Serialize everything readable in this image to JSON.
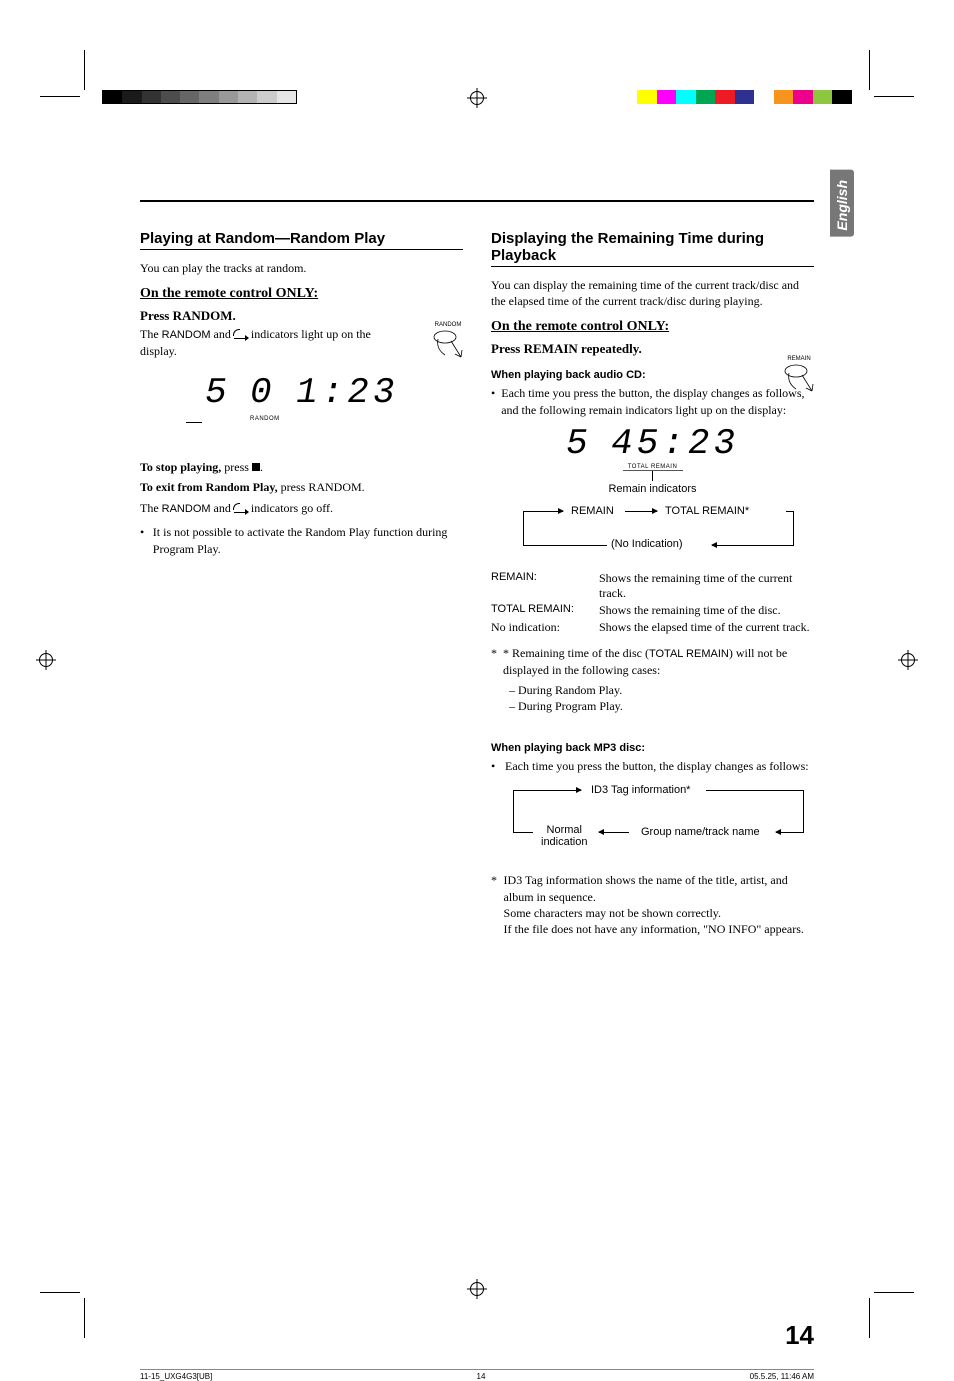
{
  "registration_colors": {
    "gray_ramp": [
      "#000000",
      "#1a1a1a",
      "#333333",
      "#4d4d4d",
      "#666666",
      "#7f7f7f",
      "#999999",
      "#b3b3b3",
      "#cccccc",
      "#e5e5e5"
    ],
    "cmyk_bar": [
      "#ffff00",
      "#ff00ff",
      "#00ffff",
      "#00a651",
      "#ed1c24",
      "#2e3192",
      "#ffffff",
      "#f7941d",
      "#ec008c",
      "#8dc63f",
      "#000000"
    ]
  },
  "lang_tab": "English",
  "left": {
    "h2": "Playing at Random—Random Play",
    "intro": "You can play the tracks at random.",
    "remote_only": "On the remote control ONLY:",
    "press_random": "Press RANDOM.",
    "random_desc_pre": "The ",
    "random_word": "RANDOM",
    "random_desc_mid": " and ",
    "random_desc_post": " indicators light up on the display.",
    "btn_label": "RANDOM",
    "lcd": {
      "track": "5",
      "idx": "0",
      "time": "1:23",
      "label": "RANDOM"
    },
    "stop_bold": "To stop playing,",
    "stop_rest": " press ",
    "stop_rest2": ".",
    "exit_bold": "To exit from Random Play,",
    "exit_rest": " press RANDOM.",
    "goesoff_pre": "The ",
    "goesoff_rand": "RANDOM",
    "goesoff_mid": " and ",
    "goesoff_post": " indicators go off.",
    "bullet": "It is not possible to activate the Random Play function during Program Play."
  },
  "right": {
    "h2": "Displaying the Remaining Time during Playback",
    "intro": "You can display the remaining time of the current track/disc and the elapsed time of the current track/disc during playing.",
    "remote_only": "On the remote control ONLY:",
    "press_remain": "Press REMAIN repeatedly.",
    "btn_label": "REMAIN",
    "cd_heading": "When playing back audio CD:",
    "cd_bullet": "Each time you press the button, the display changes as follows, and the following remain indicators light up on the display:",
    "lcd": {
      "track": "5",
      "time": "45:23",
      "sub": "TOTAL REMAIN",
      "caption": "Remain indicators"
    },
    "flow_cd": {
      "a": "REMAIN",
      "b": "TOTAL REMAIN*",
      "c": "(No Indication)"
    },
    "defs": [
      {
        "k": "REMAIN:",
        "v": "Shows the remaining time of the current track."
      },
      {
        "k": "TOTAL REMAIN:",
        "v": "Shows the remaining time of the disc."
      },
      {
        "k": "No indication:",
        "v": "Shows the elapsed time of the current track.",
        "serif": true
      }
    ],
    "star_intro_pre": "* Remaining time of the disc (",
    "star_intro_tr": "TOTAL REMAIN",
    "star_intro_post": ") will not be displayed in the following cases:",
    "star_items": [
      "– During Random Play.",
      "– During Program Play."
    ],
    "mp3_heading": "When playing back MP3 disc:",
    "mp3_bullet": "Each time you press the button, the display changes as follows:",
    "flow_mp3": {
      "a": "ID3 Tag information*",
      "b": "Group name/track name",
      "c1": "Normal",
      "c2": "indication"
    },
    "id3_note1": "ID3 Tag information shows the name of the title, artist, and album in sequence.",
    "id3_note2": "Some characters may not be shown correctly.",
    "id3_note3": "If the file does not have any information, \"NO INFO\" appears."
  },
  "page_number": "14",
  "footer": {
    "file": "11-15_UXG4G3[UB]",
    "pg": "14",
    "ts": "05.5.25, 11:46 AM"
  }
}
